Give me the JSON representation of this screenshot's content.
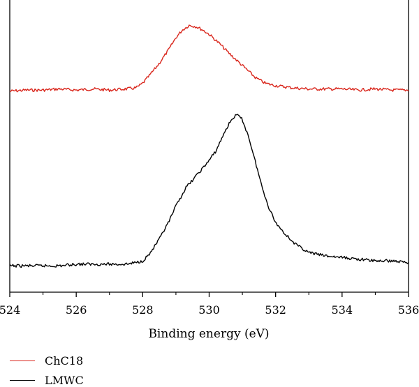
{
  "chart_data": {
    "type": "line",
    "xlabel": "Binding energy (eV)",
    "ylabel": "",
    "xlim": [
      524,
      536
    ],
    "xticks": [
      524,
      526,
      528,
      530,
      532,
      534,
      536
    ],
    "xtick_labels": [
      "524",
      "526",
      "528",
      "530",
      "532",
      "534",
      "536"
    ],
    "y_axis_visible": false,
    "grid": false,
    "legend_position": "bottom-left",
    "series": [
      {
        "name": "ChC18",
        "color": "#d9261c",
        "x": [
          524,
          524.5,
          525,
          525.5,
          526,
          526.5,
          527,
          527.5,
          527.8,
          528.0,
          528.2,
          528.5,
          528.8,
          529.0,
          529.2,
          529.4,
          529.6,
          529.8,
          530.0,
          530.3,
          530.6,
          531.0,
          531.4,
          531.7,
          532.0,
          532.5,
          533,
          533.5,
          534,
          534.5,
          535,
          535.5,
          536
        ],
        "y": [
          0.07,
          0.08,
          0.08,
          0.09,
          0.08,
          0.09,
          0.08,
          0.09,
          0.1,
          0.14,
          0.21,
          0.32,
          0.45,
          0.55,
          0.62,
          0.66,
          0.65,
          0.62,
          0.58,
          0.5,
          0.41,
          0.3,
          0.19,
          0.14,
          0.12,
          0.1,
          0.09,
          0.09,
          0.09,
          0.08,
          0.09,
          0.08,
          0.08
        ],
        "values": [
          0.07,
          0.08,
          0.08,
          0.09,
          0.08,
          0.09,
          0.08,
          0.09,
          0.1,
          0.14,
          0.21,
          0.32,
          0.45,
          0.55,
          0.62,
          0.66,
          0.65,
          0.62,
          0.58,
          0.5,
          0.41,
          0.3,
          0.19,
          0.14,
          0.12,
          0.1,
          0.09,
          0.09,
          0.09,
          0.08,
          0.09,
          0.08,
          0.08
        ]
      },
      {
        "name": "LMWC",
        "color": "#000000",
        "x": [
          524,
          524.5,
          525,
          525.5,
          526,
          526.5,
          527,
          527.5,
          527.8,
          528.0,
          528.2,
          528.5,
          528.8,
          529.0,
          529.3,
          529.6,
          529.9,
          530.2,
          530.5,
          530.7,
          530.85,
          531.0,
          531.2,
          531.4,
          531.6,
          531.8,
          532.0,
          532.3,
          532.6,
          533,
          533.5,
          534,
          534.5,
          535,
          535.5,
          536
        ],
        "y": [
          0.02,
          0.02,
          0.02,
          0.02,
          0.03,
          0.03,
          0.03,
          0.03,
          0.04,
          0.05,
          0.09,
          0.18,
          0.29,
          0.38,
          0.49,
          0.56,
          0.63,
          0.71,
          0.84,
          0.91,
          0.93,
          0.9,
          0.79,
          0.64,
          0.49,
          0.37,
          0.28,
          0.21,
          0.15,
          0.1,
          0.08,
          0.07,
          0.06,
          0.05,
          0.05,
          0.04
        ],
        "values": [
          0.02,
          0.02,
          0.02,
          0.02,
          0.03,
          0.03,
          0.03,
          0.03,
          0.04,
          0.05,
          0.09,
          0.18,
          0.29,
          0.38,
          0.49,
          0.56,
          0.63,
          0.71,
          0.84,
          0.91,
          0.93,
          0.9,
          0.79,
          0.64,
          0.49,
          0.37,
          0.28,
          0.21,
          0.15,
          0.1,
          0.08,
          0.07,
          0.06,
          0.05,
          0.05,
          0.04
        ]
      }
    ]
  }
}
